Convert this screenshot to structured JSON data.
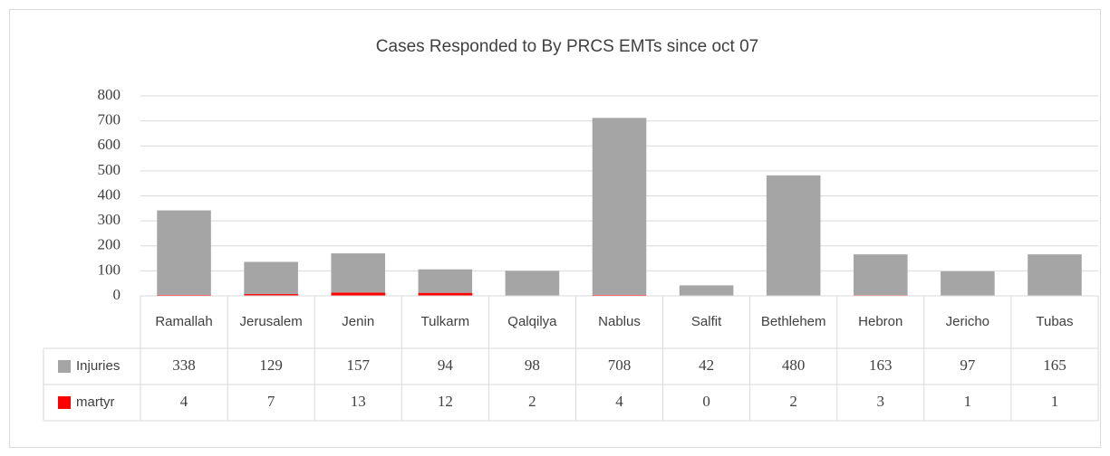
{
  "chart_data": {
    "type": "bar",
    "stacked": true,
    "title": "Cases Responded to By PRCS EMTs since oct 07",
    "categories": [
      "Ramallah",
      "Jerusalem",
      "Jenin",
      "Tulkarm",
      "Qalqilya",
      "Nablus",
      "Salfit",
      "Bethlehem",
      "Hebron",
      "Jericho",
      "Tubas"
    ],
    "series": [
      {
        "name": "martyr",
        "color": "#ff0000",
        "values": [
          4,
          7,
          13,
          12,
          2,
          4,
          0,
          2,
          3,
          1,
          1
        ]
      },
      {
        "name": "Injuries",
        "color": "#a5a5a5",
        "values": [
          338,
          129,
          157,
          94,
          98,
          708,
          42,
          480,
          163,
          97,
          165
        ]
      }
    ],
    "table_order": [
      1,
      0
    ],
    "ylim": [
      0,
      800
    ],
    "yticks": [
      0,
      100,
      200,
      300,
      400,
      500,
      600,
      700,
      800
    ],
    "grid": true
  }
}
